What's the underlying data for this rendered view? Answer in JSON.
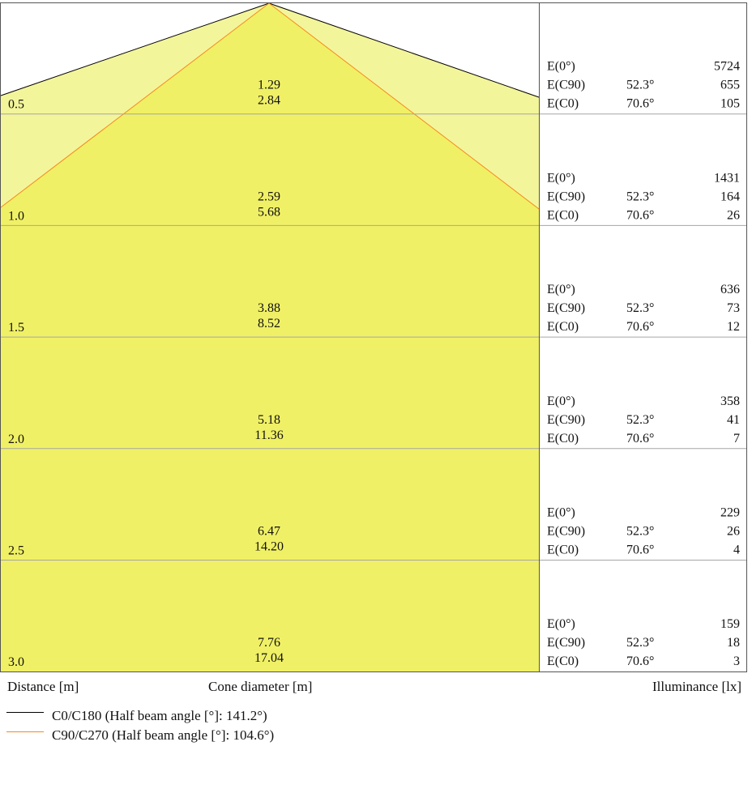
{
  "colors": {
    "cone_inner": "#f0f066",
    "cone_outer": "#f3f59b",
    "c0_line": "#000000",
    "c90_line": "#f58a1f",
    "grid": "#a6a6a6",
    "frame": "#555555"
  },
  "rows": [
    {
      "distance": "0.5",
      "cone_c90": "1.29",
      "cone_c0": "2.84",
      "e0_label": "E(0°)",
      "e0_value": "5724",
      "ec90_label": "E(C90)",
      "ec90_angle": "52.3°",
      "ec90_value": "655",
      "ec0_label": "E(C0)",
      "ec0_angle": "70.6°",
      "ec0_value": "105"
    },
    {
      "distance": "1.0",
      "cone_c90": "2.59",
      "cone_c0": "5.68",
      "e0_label": "E(0°)",
      "e0_value": "1431",
      "ec90_label": "E(C90)",
      "ec90_angle": "52.3°",
      "ec90_value": "164",
      "ec0_label": "E(C0)",
      "ec0_angle": "70.6°",
      "ec0_value": "26"
    },
    {
      "distance": "1.5",
      "cone_c90": "3.88",
      "cone_c0": "8.52",
      "e0_label": "E(0°)",
      "e0_value": "636",
      "ec90_label": "E(C90)",
      "ec90_angle": "52.3°",
      "ec90_value": "73",
      "ec0_label": "E(C0)",
      "ec0_angle": "70.6°",
      "ec0_value": "12"
    },
    {
      "distance": "2.0",
      "cone_c90": "5.18",
      "cone_c0": "11.36",
      "e0_label": "E(0°)",
      "e0_value": "358",
      "ec90_label": "E(C90)",
      "ec90_angle": "52.3°",
      "ec90_value": "41",
      "ec0_label": "E(C0)",
      "ec0_angle": "70.6°",
      "ec0_value": "7"
    },
    {
      "distance": "2.5",
      "cone_c90": "6.47",
      "cone_c0": "14.20",
      "e0_label": "E(0°)",
      "e0_value": "229",
      "ec90_label": "E(C90)",
      "ec90_angle": "52.3°",
      "ec90_value": "26",
      "ec0_label": "E(C0)",
      "ec0_angle": "70.6°",
      "ec0_value": "4"
    },
    {
      "distance": "3.0",
      "cone_c90": "7.76",
      "cone_c0": "17.04",
      "e0_label": "E(0°)",
      "e0_value": "159",
      "ec90_label": "E(C90)",
      "ec90_angle": "52.3°",
      "ec90_value": "18",
      "ec0_label": "E(C0)",
      "ec0_angle": "70.6°",
      "ec0_value": "3"
    }
  ],
  "footer": {
    "distance_label": "Distance [m]",
    "cone_label": "Cone diameter [m]",
    "illuminance_label": "Illuminance [lx]"
  },
  "legend": [
    {
      "label": "C0/C180 (Half beam angle [°]: 141.2°)",
      "color": "#000000"
    },
    {
      "label": "C90/C270 (Half beam angle [°]: 104.6°)",
      "color": "#f58a1f"
    }
  ]
}
